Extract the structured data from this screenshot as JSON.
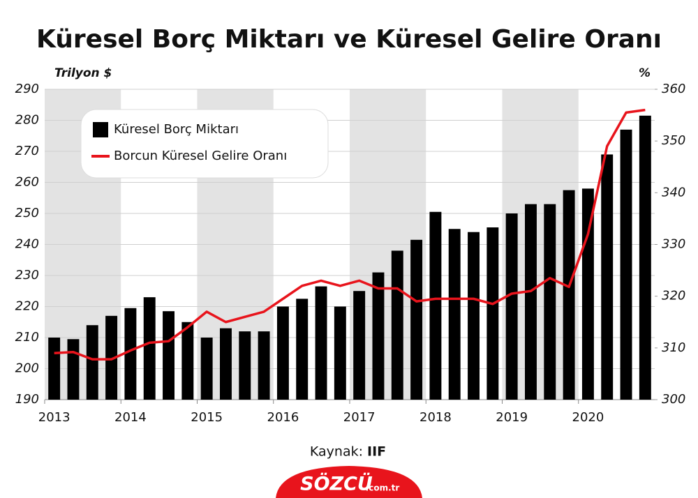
{
  "chart_data": {
    "type": "bar_line",
    "title": "Küresel Borç Miktarı ve Küresel Gelire Oranı",
    "y_label": "Trilyon $",
    "y2_label": "%",
    "categories": [
      "2013",
      null,
      null,
      null,
      "2014",
      null,
      null,
      null,
      "2015",
      null,
      null,
      null,
      "2016",
      null,
      null,
      null,
      "2017",
      null,
      null,
      null,
      "2018",
      null,
      null,
      null,
      "2019",
      null,
      null,
      null,
      "2020",
      null,
      null,
      null
    ],
    "series": [
      {
        "name": "Küresel Borç Miktarı",
        "type": "bar",
        "color": "#000000",
        "values": [
          210,
          209.5,
          214,
          217,
          219.5,
          223,
          218.5,
          215,
          210,
          213,
          212,
          212,
          220,
          222.5,
          226.5,
          220,
          225,
          231,
          238,
          241.5,
          250.5,
          245,
          244,
          245.5,
          250,
          253,
          253,
          257.5,
          258,
          269,
          277,
          281.5
        ]
      },
      {
        "name": "Borcun Küresel Gelire Oranı",
        "type": "line",
        "axis": "y2",
        "color": "#e8141c",
        "values": [
          309,
          309.2,
          307.8,
          307.8,
          309.5,
          311,
          311.3,
          314,
          317,
          315,
          316,
          317,
          319.5,
          322,
          323,
          322,
          323,
          321.5,
          321.5,
          319,
          319.5,
          319.5,
          319.5,
          318.5,
          320.5,
          321,
          323.5,
          321.8,
          332,
          349,
          355.5,
          356
        ]
      }
    ],
    "ylim": [
      190,
      290
    ],
    "yticks": [
      190,
      200,
      210,
      220,
      230,
      240,
      250,
      260,
      270,
      280,
      290
    ],
    "y2lim": [
      300,
      360
    ],
    "y2ticks": [
      300,
      310,
      320,
      330,
      340,
      350,
      360
    ],
    "grid": true,
    "legend": "upper left",
    "source_label": "Kaynak:",
    "source": "IIF",
    "logo": "SÖZCÜ",
    "logo_suffix": ".com.tr"
  }
}
